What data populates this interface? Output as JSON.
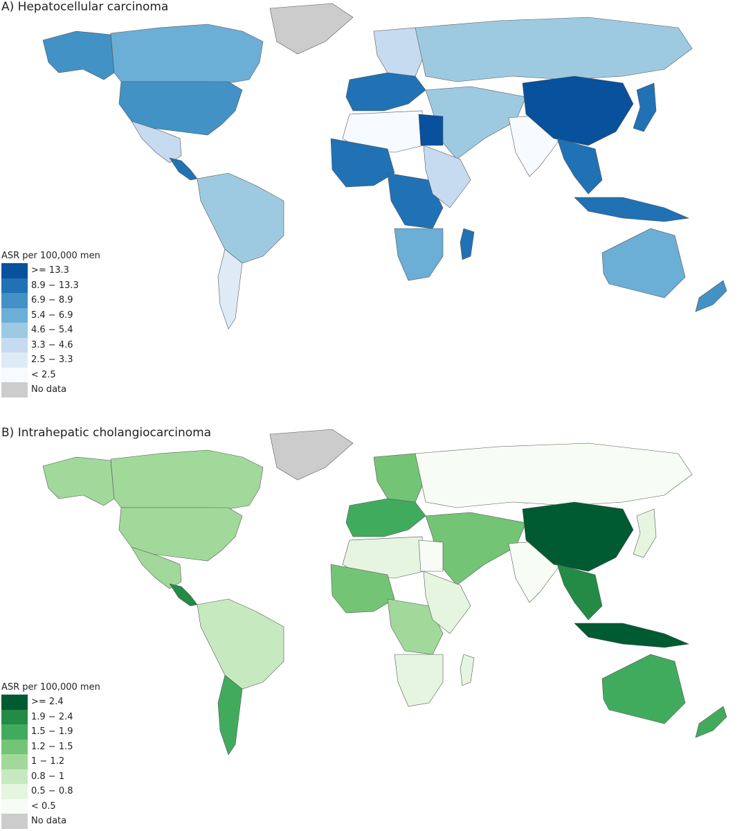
{
  "panels": [
    {
      "title": "A) Hepatocellular carcinoma",
      "legend_title": "ASR per 100,000 men",
      "palette": "blue",
      "bins": [
        {
          "label": ">= 13.3",
          "color": "#08519c"
        },
        {
          "label": "8.9  −  13.3",
          "color": "#2171b5"
        },
        {
          "label": "6.9  −  8.9",
          "color": "#4292c6"
        },
        {
          "label": "5.4  −  6.9",
          "color": "#6baed6"
        },
        {
          "label": "4.6  −  5.4",
          "color": "#9ecae1"
        },
        {
          "label": "3.3  −  4.6",
          "color": "#c6dbef"
        },
        {
          "label": "2.5  −  3.3",
          "color": "#deebf7"
        },
        {
          "label": "< 2.5",
          "color": "#f7fbff"
        },
        {
          "label": "No data",
          "color": "#cccccc"
        }
      ]
    },
    {
      "title": "B) Intrahepatic cholangiocarcinoma",
      "legend_title": "ASR per 100,000 men",
      "palette": "green",
      "bins": [
        {
          "label": ">= 2.4",
          "color": "#005a32"
        },
        {
          "label": "1.9  −  2.4",
          "color": "#238b45"
        },
        {
          "label": "1.5  −  1.9",
          "color": "#41ab5d"
        },
        {
          "label": "1.2  −  1.5",
          "color": "#74c476"
        },
        {
          "label": "1  −  1.2",
          "color": "#a1d99b"
        },
        {
          "label": "0.8  −  1",
          "color": "#c7e9c0"
        },
        {
          "label": "0.5  −  0.8",
          "color": "#e5f5e0"
        },
        {
          "label": "< 0.5",
          "color": "#f7fcf5"
        },
        {
          "label": "No data",
          "color": "#cccccc"
        }
      ]
    }
  ],
  "regions_a": {
    "north_america": "#4292c6",
    "canada": "#6baed6",
    "alaska": "#4292c6",
    "greenland": "#cccccc",
    "mexico": "#c6dbef",
    "central_america": "#2171b5",
    "south_america": "#9ecae1",
    "south_america_south": "#deebf7",
    "western_europe": "#2171b5",
    "northern_europe": "#c6dbef",
    "russia": "#9ecae1",
    "middle_east": "#9ecae1",
    "north_africa": "#f7fbff",
    "egypt": "#08519c",
    "west_africa": "#2171b5",
    "central_africa": "#2171b5",
    "east_africa": "#c6dbef",
    "southern_africa": "#6baed6",
    "madagascar": "#2171b5",
    "india": "#f7fbff",
    "china": "#08519c",
    "southeast_asia": "#2171b5",
    "japan": "#2171b5",
    "indonesia": "#2171b5",
    "australia": "#6baed6",
    "new_zealand": "#4292c6"
  },
  "regions_b": {
    "north_america": "#a1d99b",
    "canada": "#a1d99b",
    "alaska": "#a1d99b",
    "greenland": "#cccccc",
    "mexico": "#a1d99b",
    "central_america": "#238b45",
    "south_america": "#c7e9c0",
    "south_america_south": "#41ab5d",
    "western_europe": "#41ab5d",
    "northern_europe": "#74c476",
    "russia": "#f7fcf5",
    "middle_east": "#74c476",
    "north_africa": "#e5f5e0",
    "egypt": "#f7fcf5",
    "west_africa": "#74c476",
    "central_africa": "#a1d99b",
    "east_africa": "#e5f5e0",
    "southern_africa": "#e5f5e0",
    "madagascar": "#e5f5e0",
    "india": "#f7fcf5",
    "china": "#005a32",
    "southeast_asia": "#238b45",
    "japan": "#e5f5e0",
    "indonesia": "#005a32",
    "australia": "#41ab5d",
    "new_zealand": "#41ab5d"
  }
}
